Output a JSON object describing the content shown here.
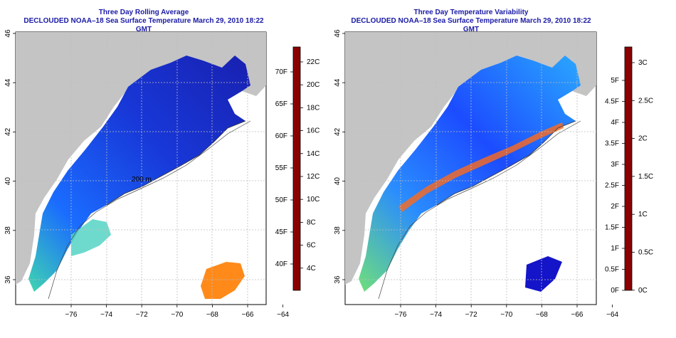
{
  "panels": [
    {
      "title": "Three Day Rolling Average",
      "subtitle": "DECLOUDED NOAA–18 Sea Surface Temperature March 29, 2010 18:22 GMT",
      "colorbar": {
        "label_c": [
          "22C",
          "20C",
          "18C",
          "16C",
          "14C",
          "12C",
          "10C",
          "8C",
          "6C",
          "4C"
        ],
        "label_f": [
          "70F",
          "65F",
          "60F",
          "55F",
          "50F",
          "45F",
          "40F"
        ],
        "colors": [
          "#8b0000",
          "#e60000",
          "#ff5a00",
          "#ffae00",
          "#f4f400",
          "#8fe84d",
          "#2fe0c8",
          "#12a6ff",
          "#1c4cff",
          "#1414c8",
          "#10108a"
        ]
      }
    },
    {
      "title": "Three Day Temperature Variability",
      "subtitle": "DECLOUDED NOAA–18 Sea Surface Temperature March 29, 2010 18:22 GMT",
      "colorbar": {
        "label_c": [
          "3C",
          "2.5C",
          "2C",
          "1.5C",
          "1C",
          "0.5C",
          "0C"
        ],
        "label_f": [
          "5F",
          "4.5F",
          "4F",
          "3.5F",
          "3F",
          "2.5F",
          "2F",
          "1.5F",
          "1F",
          "0.5F",
          "0F"
        ],
        "colors": [
          "#8b0000",
          "#e60000",
          "#ff5a00",
          "#ffae00",
          "#f4f400",
          "#8fe84d",
          "#2fe0c8",
          "#12a6ff",
          "#1c4cff",
          "#1414c8",
          "#10108a"
        ]
      }
    }
  ],
  "axes": {
    "x_ticks": [
      "−76",
      "−74",
      "−72",
      "−70",
      "−68",
      "−66",
      "−64"
    ],
    "y_ticks": [
      "36",
      "38",
      "40",
      "42",
      "44",
      "46"
    ]
  },
  "annotations": {
    "isobath_label": "200 m"
  },
  "colors": {
    "land": "#c4c4c4",
    "title": "#1a1aa6"
  }
}
